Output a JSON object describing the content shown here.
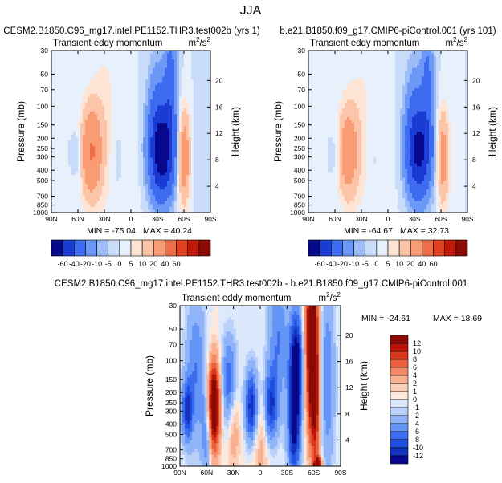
{
  "figure": {
    "season": "JJA"
  },
  "chart_data": [
    {
      "type": "heatmap",
      "panel": "test",
      "case_title": "CESM2.B1850.C96_mg17.intel.PE1152.THR3.test002b (yrs 1)",
      "subtitle": "Transient eddy momentum",
      "units": "m²/s²",
      "units_base": "m",
      "units_sup1": "2",
      "units_mid": "/s",
      "units_sup2": "2",
      "ylabel": "Pressure (mb)",
      "ylabel_right": "Height (km)",
      "xticks": [
        "90N",
        "60N",
        "30N",
        "0",
        "30S",
        "60S",
        "90S"
      ],
      "xlim": [
        90,
        -90
      ],
      "yticks": [
        30,
        50,
        70,
        100,
        150,
        200,
        250,
        300,
        400,
        500,
        700,
        850,
        1000
      ],
      "ylim": [
        30,
        1000
      ],
      "height_ticks": [
        20,
        16,
        12,
        8,
        4
      ],
      "min_label": "MIN = -75.04",
      "max_label": "MAX = 40.24",
      "min": -75.04,
      "max": 40.24,
      "features": [
        {
          "lat": 45,
          "p": 270,
          "value": 40,
          "sig_lat": 8,
          "sig_logp": 0.3
        },
        {
          "lat": 60,
          "p": 280,
          "value": -8,
          "sig_lat": 4,
          "sig_logp": 0.15
        },
        {
          "lat": 15,
          "p": 320,
          "value": -6,
          "sig_lat": 6,
          "sig_logp": 0.3
        },
        {
          "lat": 30,
          "p": 120,
          "value": 6,
          "sig_lat": 10,
          "sig_logp": 0.6
        },
        {
          "lat": -35,
          "p": 270,
          "value": -75,
          "sig_lat": 10,
          "sig_logp": 0.3
        },
        {
          "lat": -30,
          "p": 90,
          "value": -15,
          "sig_lat": 8,
          "sig_logp": 0.35
        },
        {
          "lat": -45,
          "p": 60,
          "value": -25,
          "sig_lat": 5,
          "sig_logp": 0.4
        },
        {
          "lat": -60,
          "p": 300,
          "value": 35,
          "sig_lat": 5,
          "sig_logp": 0.3
        },
        {
          "lat": -72,
          "p": 300,
          "value": -3,
          "sig_lat": 4,
          "sig_logp": 0.35
        },
        {
          "lat": 10,
          "p": 500,
          "value": 4,
          "sig_lat": 15,
          "sig_logp": 0.6
        }
      ]
    },
    {
      "type": "heatmap",
      "panel": "control",
      "case_title": "b.e21.B1850.f09_g17.CMIP6-piControl.001 (yrs 101)",
      "subtitle": "Transient eddy momentum",
      "units": "m²/s²",
      "units_base": "m",
      "units_sup1": "2",
      "units_mid": "/s",
      "units_sup2": "2",
      "ylabel": "Pressure (mb)",
      "ylabel_right": "Height (km)",
      "xticks": [
        "90N",
        "60N",
        "30N",
        "0",
        "30S",
        "60S",
        "90S"
      ],
      "xlim": [
        90,
        -90
      ],
      "yticks": [
        30,
        50,
        70,
        100,
        150,
        200,
        250,
        300,
        400,
        500,
        700,
        850,
        1000
      ],
      "ylim": [
        30,
        1000
      ],
      "height_ticks": [
        20,
        16,
        12,
        8,
        4
      ],
      "min_label": "MIN = -64.67",
      "max_label": "MAX = 32.73",
      "min": -64.67,
      "max": 32.73,
      "features": [
        {
          "lat": 45,
          "p": 270,
          "value": 32,
          "sig_lat": 8,
          "sig_logp": 0.3
        },
        {
          "lat": 60,
          "p": 280,
          "value": -5,
          "sig_lat": 4,
          "sig_logp": 0.15
        },
        {
          "lat": 15,
          "p": 320,
          "value": -4,
          "sig_lat": 6,
          "sig_logp": 0.3
        },
        {
          "lat": 30,
          "p": 120,
          "value": 5,
          "sig_lat": 10,
          "sig_logp": 0.6
        },
        {
          "lat": -35,
          "p": 270,
          "value": -64,
          "sig_lat": 10,
          "sig_logp": 0.3
        },
        {
          "lat": -30,
          "p": 90,
          "value": -12,
          "sig_lat": 8,
          "sig_logp": 0.35
        },
        {
          "lat": -45,
          "p": 60,
          "value": -22,
          "sig_lat": 5,
          "sig_logp": 0.4
        },
        {
          "lat": -62,
          "p": 300,
          "value": 30,
          "sig_lat": 5,
          "sig_logp": 0.3
        },
        {
          "lat": 10,
          "p": 500,
          "value": 3,
          "sig_lat": 15,
          "sig_logp": 0.6
        }
      ]
    },
    {
      "type": "heatmap",
      "panel": "difference",
      "case_title": "CESM2.B1850.C96_mg17.intel.PE1152.THR3.test002b - b.e21.B1850.f09_g17.CMIP6-piControl.001",
      "subtitle": "Transient eddy momentum",
      "units": "m²/s²",
      "units_base": "m",
      "units_sup1": "2",
      "units_mid": "/s",
      "units_sup2": "2",
      "ylabel": "Pressure (mb)",
      "ylabel_right": "Height (km)",
      "xticks": [
        "90N",
        "60N",
        "30N",
        "0",
        "30S",
        "60S",
        "90S"
      ],
      "xlim": [
        90,
        -90
      ],
      "yticks": [
        30,
        50,
        70,
        100,
        150,
        200,
        250,
        300,
        400,
        500,
        700,
        850,
        1000
      ],
      "ylim": [
        30,
        1000
      ],
      "height_ticks": [
        20,
        16,
        12,
        8,
        4
      ],
      "min_label": "MIN = -24.61",
      "max_label": "MAX =  18.69",
      "min": -24.61,
      "max": 18.69,
      "features": [
        {
          "lat": 52,
          "p": 270,
          "value": 18,
          "sig_lat": 5,
          "sig_logp": 0.3
        },
        {
          "lat": 72,
          "p": 120,
          "value": -6,
          "sig_lat": 8,
          "sig_logp": 0.5
        },
        {
          "lat": 82,
          "p": 300,
          "value": -10,
          "sig_lat": 4,
          "sig_logp": 0.2
        },
        {
          "lat": 60,
          "p": 500,
          "value": -6,
          "sig_lat": 4,
          "sig_logp": 0.3
        },
        {
          "lat": 35,
          "p": 160,
          "value": -8,
          "sig_lat": 6,
          "sig_logp": 0.3
        },
        {
          "lat": 30,
          "p": 400,
          "value": 4,
          "sig_lat": 5,
          "sig_logp": 0.3
        },
        {
          "lat": 10,
          "p": 280,
          "value": -12,
          "sig_lat": 5,
          "sig_logp": 0.25
        },
        {
          "lat": -12,
          "p": 280,
          "value": -10,
          "sig_lat": 5,
          "sig_logp": 0.25
        },
        {
          "lat": -20,
          "p": 60,
          "value": -6,
          "sig_lat": 8,
          "sig_logp": 0.5
        },
        {
          "lat": -40,
          "p": 100,
          "value": -14,
          "sig_lat": 5,
          "sig_logp": 0.35
        },
        {
          "lat": -38,
          "p": 450,
          "value": -12,
          "sig_lat": 5,
          "sig_logp": 0.35
        },
        {
          "lat": -58,
          "p": 60,
          "value": 18,
          "sig_lat": 5,
          "sig_logp": 0.6
        },
        {
          "lat": -62,
          "p": 300,
          "value": 8,
          "sig_lat": 4,
          "sig_logp": 0.4
        },
        {
          "lat": -75,
          "p": 150,
          "value": -6,
          "sig_lat": 6,
          "sig_logp": 0.6
        },
        {
          "lat": -65,
          "p": 950,
          "value": 12,
          "sig_lat": 3,
          "sig_logp": 0.05
        },
        {
          "lat": 0,
          "p": 600,
          "value": 3,
          "sig_lat": 10,
          "sig_logp": 0.3
        }
      ]
    }
  ],
  "colorbars": {
    "main": {
      "labels": [
        "-60",
        "-40",
        "-20",
        "-10",
        "-5",
        "0",
        "5",
        "10",
        "20",
        "40",
        "60"
      ],
      "levels": [
        -60,
        -40,
        -20,
        -10,
        -5,
        0,
        5,
        10,
        20,
        40,
        60
      ],
      "colors": [
        "#08088c",
        "#1a3cd4",
        "#3d6cf0",
        "#6c98f8",
        "#9cbdf8",
        "#c8dcfa",
        "#e8f0fc",
        "#fde4d4",
        "#fcc4a8",
        "#f99c74",
        "#f06e46",
        "#e0401e",
        "#c01808",
        "#8c0a04"
      ]
    },
    "diff": {
      "labels": [
        "12",
        "10",
        "8",
        "6",
        "4",
        "2",
        "1",
        "0",
        "-1",
        "-2",
        "-4",
        "-6",
        "-8",
        "-10",
        "-12"
      ],
      "levels": [
        -12,
        -10,
        -8,
        -6,
        -4,
        -2,
        -1,
        0,
        1,
        2,
        4,
        6,
        8,
        10,
        12
      ],
      "colors": [
        "#08088c",
        "#1432c0",
        "#2050e0",
        "#3c6cf0",
        "#6494f6",
        "#90b4f8",
        "#b8d0fa",
        "#dce8fc",
        "#fde8dc",
        "#fcd0b8",
        "#f9b090",
        "#f48864",
        "#ec603c",
        "#d8381a",
        "#b81408",
        "#8c0a04"
      ]
    }
  }
}
